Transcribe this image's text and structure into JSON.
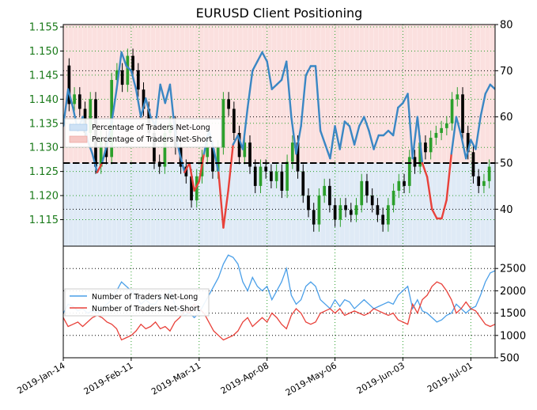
{
  "chart_data": [
    {
      "type": "line",
      "title": "EURUSD Client Positioning",
      "left_axis": {
        "ylim": [
          1.1095,
          1.1555
        ],
        "ticks": [
          "1.115",
          "1.120",
          "1.125",
          "1.130",
          "1.135",
          "1.140",
          "1.145",
          "1.150",
          "1.155"
        ]
      },
      "right_axis": {
        "ylim": [
          32,
          80
        ],
        "ticks": [
          "40",
          "50",
          "60",
          "70",
          "80"
        ]
      },
      "reference_line": 50,
      "legend": {
        "placement": "left",
        "entries": [
          "Percentage of Traders Net-Long",
          "Percentage of Traders Net-Short"
        ]
      },
      "percent_net_long": {
        "name": "Percentage of Traders Net-Long",
        "x": [
          0,
          2,
          4,
          6,
          8,
          10,
          12,
          14,
          16,
          18,
          20,
          22,
          24,
          26,
          28,
          30,
          32,
          34,
          36,
          38,
          40,
          42,
          44,
          46,
          48,
          50,
          52,
          54,
          56,
          58,
          60,
          62,
          64,
          66,
          68,
          70,
          72,
          74,
          76,
          78,
          80,
          82,
          84,
          86,
          88,
          90,
          92,
          94,
          96,
          98,
          100,
          102,
          104,
          106,
          108,
          110,
          112,
          114,
          116,
          118,
          120,
          122,
          124,
          126,
          128,
          130,
          132,
          134,
          136,
          138,
          140,
          142,
          144,
          146,
          148,
          150,
          152,
          154,
          156,
          158,
          160,
          162,
          164,
          166,
          168,
          170,
          172,
          174,
          176,
          178
        ],
        "values": [
          58,
          66,
          62,
          57,
          60,
          55,
          52,
          48,
          50,
          54,
          59,
          66,
          74,
          71,
          70,
          66,
          60,
          64,
          60,
          58,
          67,
          63,
          67,
          57,
          52,
          48,
          50,
          44,
          46,
          52,
          57,
          53,
          48,
          36,
          44,
          54,
          56,
          53,
          62,
          70,
          72,
          74,
          72,
          66,
          67,
          68,
          72,
          60,
          52,
          58,
          69,
          71,
          71,
          57,
          54,
          51,
          58,
          53,
          59,
          58,
          54,
          58,
          60,
          57,
          53,
          56,
          56,
          57,
          56,
          62,
          63,
          65,
          51,
          60,
          50,
          47,
          40,
          38,
          38,
          42,
          52,
          60,
          56,
          51,
          55,
          53,
          60,
          65,
          67,
          66
        ],
        "color": "#3a87c4",
        "fill": "#dfeaf6",
        "net_short_color": "#e8413a",
        "net_short_fill": "#fbe0df"
      },
      "price_ohlc": {
        "open": [
          1.147,
          1.139,
          1.141,
          1.138,
          1.133,
          1.14,
          1.126,
          1.132,
          1.128,
          1.144,
          1.146,
          1.143,
          1.149,
          1.146,
          1.142,
          1.138,
          1.133,
          1.127,
          1.126,
          1.133,
          1.135,
          1.13,
          1.126,
          1.124,
          1.119,
          1.124,
          1.128,
          1.13,
          1.125,
          1.13,
          1.14,
          1.138,
          1.133,
          1.128,
          1.131,
          1.126,
          1.122,
          1.126,
          1.125,
          1.123,
          1.125,
          1.121,
          1.127,
          1.131,
          1.125,
          1.12,
          1.117,
          1.114,
          1.12,
          1.122,
          1.118,
          1.115,
          1.118,
          1.117,
          1.116,
          1.118,
          1.123,
          1.12,
          1.118,
          1.116,
          1.114,
          1.118,
          1.121,
          1.123,
          1.122,
          1.128,
          1.126,
          1.131,
          1.129,
          1.132,
          1.133,
          1.134,
          1.135,
          1.14,
          1.141,
          1.133,
          1.129,
          1.124,
          1.122,
          1.123
        ],
        "close": [
          1.139,
          1.141,
          1.138,
          1.133,
          1.14,
          1.126,
          1.132,
          1.128,
          1.144,
          1.146,
          1.143,
          1.149,
          1.146,
          1.142,
          1.138,
          1.133,
          1.127,
          1.126,
          1.133,
          1.135,
          1.13,
          1.126,
          1.124,
          1.119,
          1.124,
          1.128,
          1.13,
          1.125,
          1.13,
          1.14,
          1.138,
          1.133,
          1.128,
          1.131,
          1.126,
          1.122,
          1.126,
          1.125,
          1.123,
          1.125,
          1.121,
          1.127,
          1.131,
          1.125,
          1.12,
          1.117,
          1.114,
          1.12,
          1.122,
          1.118,
          1.115,
          1.118,
          1.117,
          1.116,
          1.118,
          1.123,
          1.12,
          1.118,
          1.116,
          1.114,
          1.118,
          1.121,
          1.123,
          1.122,
          1.128,
          1.126,
          1.131,
          1.129,
          1.132,
          1.133,
          1.134,
          1.135,
          1.14,
          1.141,
          1.133,
          1.129,
          1.124,
          1.122,
          1.123,
          1.126
        ]
      }
    },
    {
      "type": "line",
      "right_axis": {
        "ylim": [
          500,
          3000
        ],
        "ticks": [
          "500",
          "1000",
          "1500",
          "2000",
          "2500"
        ]
      },
      "legend": {
        "placement": "left",
        "entries": [
          "Number of Traders Net-Long",
          "Number of Traders Net-Short"
        ]
      },
      "x": [
        0,
        2,
        4,
        6,
        8,
        10,
        12,
        14,
        16,
        18,
        20,
        22,
        24,
        26,
        28,
        30,
        32,
        34,
        36,
        38,
        40,
        42,
        44,
        46,
        48,
        50,
        52,
        54,
        56,
        58,
        60,
        62,
        64,
        66,
        68,
        70,
        72,
        74,
        76,
        78,
        80,
        82,
        84,
        86,
        88,
        90,
        92,
        94,
        96,
        98,
        100,
        102,
        104,
        106,
        108,
        110,
        112,
        114,
        116,
        118,
        120,
        122,
        124,
        126,
        128,
        130,
        132,
        134,
        136,
        138,
        140,
        142,
        144,
        146,
        148,
        150,
        152,
        154,
        156,
        158,
        160,
        162,
        164,
        166,
        168,
        170,
        172,
        174,
        176,
        178
      ],
      "series": [
        {
          "name": "Number of Traders Net-Long",
          "color": "#4a9fe8",
          "values": [
            1500,
            1700,
            1650,
            1550,
            1600,
            1500,
            1550,
            1500,
            1600,
            1700,
            1800,
            2000,
            2200,
            2100,
            2000,
            1900,
            1700,
            1800,
            1700,
            1700,
            1900,
            1800,
            2000,
            1700,
            1600,
            1450,
            1500,
            1400,
            1500,
            1700,
            1900,
            2100,
            2300,
            2600,
            2800,
            2750,
            2600,
            2200,
            2000,
            2300,
            2100,
            2000,
            2100,
            1800,
            2000,
            2200,
            2500,
            1900,
            1700,
            1800,
            2100,
            2200,
            2100,
            1800,
            1700,
            1600,
            1800,
            1650,
            1800,
            1750,
            1600,
            1700,
            1800,
            1700,
            1600,
            1650,
            1700,
            1750,
            1700,
            1900,
            2000,
            2100,
            1600,
            1800,
            1550,
            1500,
            1400,
            1300,
            1350,
            1450,
            1500,
            1700,
            1600,
            1500,
            1600,
            1650,
            1900,
            2200,
            2400,
            2450
          ]
        },
        {
          "name": "Number of Traders Net-Short",
          "color": "#e8413a",
          "values": [
            1400,
            1200,
            1250,
            1300,
            1200,
            1300,
            1400,
            1450,
            1400,
            1300,
            1250,
            1150,
            900,
            950,
            1000,
            1100,
            1250,
            1150,
            1200,
            1300,
            1150,
            1200,
            1100,
            1300,
            1400,
            1550,
            1500,
            1700,
            1600,
            1500,
            1300,
            1100,
            1000,
            900,
            950,
            1000,
            1100,
            1300,
            1400,
            1200,
            1300,
            1400,
            1300,
            1500,
            1400,
            1250,
            1150,
            1450,
            1600,
            1500,
            1300,
            1250,
            1300,
            1500,
            1550,
            1600,
            1500,
            1600,
            1450,
            1500,
            1550,
            1500,
            1450,
            1500,
            1600,
            1550,
            1500,
            1450,
            1500,
            1350,
            1300,
            1250,
            1700,
            1500,
            1800,
            1900,
            2100,
            2200,
            2150,
            2000,
            1800,
            1500,
            1600,
            1750,
            1600,
            1550,
            1400,
            1250,
            1200,
            1250
          ]
        }
      ]
    }
  ],
  "x_ticks": {
    "positions": [
      0,
      28,
      56,
      84,
      112,
      140,
      168
    ],
    "labels": [
      "2019-Jan-14",
      "2019-Feb-11",
      "2019-Mar-11",
      "2019-Apr-08",
      "2019-May-06",
      "2019-Jun-03",
      "2019-Jul-01"
    ],
    "domain": [
      0,
      178
    ]
  }
}
